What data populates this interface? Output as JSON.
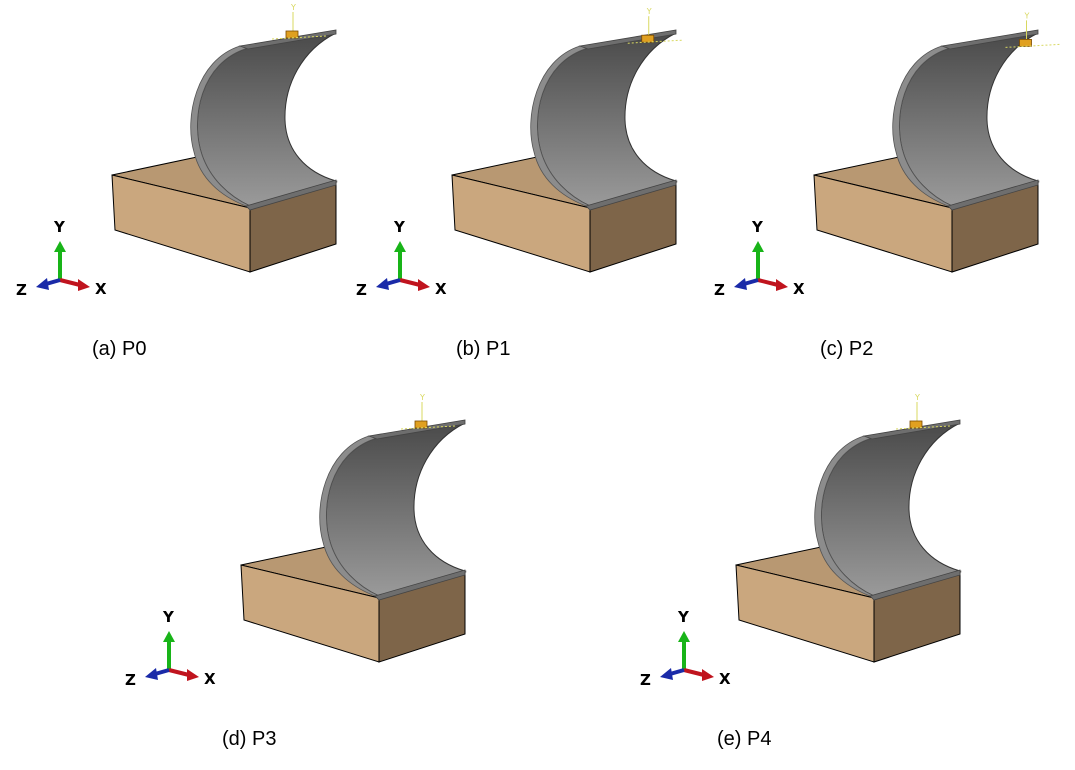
{
  "figure": {
    "panels": [
      {
        "id": "a",
        "caption": "(a) P0",
        "probe_position": 0.0
      },
      {
        "id": "b",
        "caption": "(b) P1",
        "probe_position": 0.35
      },
      {
        "id": "c",
        "caption": "(c) P2",
        "probe_position": 0.7
      },
      {
        "id": "d",
        "caption": "(d) P3",
        "probe_position": 0.0
      },
      {
        "id": "e",
        "caption": "(e) P4",
        "probe_position": 0.0
      }
    ],
    "triad": {
      "y_label": "Y",
      "x_label": "X",
      "z_label": "Z"
    },
    "local_axis_label": "Y",
    "colors": {
      "block_top": "#b89872",
      "block_front": "#caa77e",
      "block_side": "#7e6549",
      "shell_dark": "#4a4a4a",
      "shell_light": "#9a9a9a",
      "shell_edge": "#6e6e6e",
      "probe": "#e0a020",
      "x_axis": "#c0141e",
      "y_axis": "#18b418",
      "z_axis": "#1a2aa8"
    }
  }
}
